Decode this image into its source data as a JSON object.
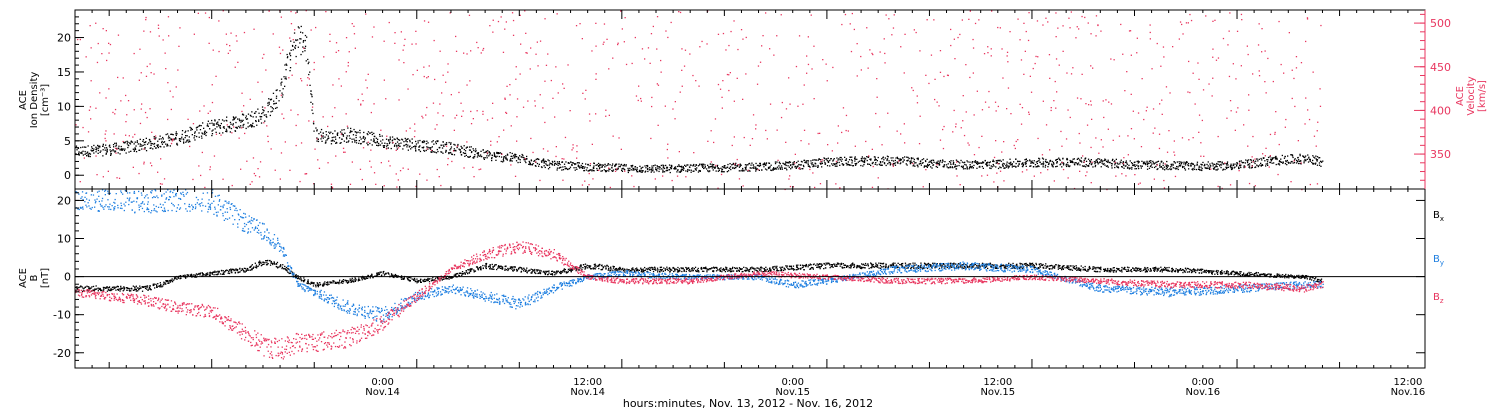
{
  "colors": {
    "black": "#000000",
    "pink": "#e8365f",
    "blue": "#1f7fe0"
  },
  "xaxis": {
    "title": "hours:minutes, Nov. 13, 2012 - Nov. 16, 2012",
    "ticks": [
      {
        "hour": 18,
        "time": "0:00",
        "date": "Nov.14"
      },
      {
        "hour": 30,
        "time": "12:00",
        "date": "Nov.14"
      },
      {
        "hour": 42,
        "time": "0:00",
        "date": "Nov.15"
      },
      {
        "hour": 54,
        "time": "12:00",
        "date": "Nov.15"
      },
      {
        "hour": 66,
        "time": "0:00",
        "date": "Nov.16"
      },
      {
        "hour": 78,
        "time": "12:00",
        "date": "Nov.16"
      }
    ]
  },
  "top_panel": {
    "left_label_lines": [
      "ACE",
      "Ion Density",
      "[cm⁻³]"
    ],
    "right_label_lines": [
      "ACE",
      "Velocity",
      "[km/s]"
    ],
    "left_ticks": [
      "0",
      "5",
      "10",
      "15",
      "20"
    ],
    "right_ticks": [
      "350",
      "400",
      "450",
      "500"
    ]
  },
  "bottom_panel": {
    "left_label_lines": [
      "ACE",
      "B",
      "[nT]"
    ],
    "left_ticks": [
      "-20",
      "-10",
      "0",
      "10",
      "20"
    ],
    "legend": [
      {
        "label": "B",
        "sub": "x",
        "color": "#000000"
      },
      {
        "label": "B",
        "sub": "y",
        "color": "#1f7fe0"
      },
      {
        "label": "B",
        "sub": "z",
        "color": "#e8365f"
      }
    ]
  },
  "chart_data": [
    {
      "type": "scatter",
      "title": "",
      "xlabel": "hours:minutes, Nov. 13, 2012 - Nov. 16, 2012",
      "ylabel": "ACE Ion Density [cm⁻³]",
      "ylabel_right": "ACE Velocity [km/s]",
      "xlim": [
        "2012-11-13T16:00",
        "2012-11-16T23:00"
      ],
      "ylim": [
        -2,
        24
      ],
      "ylim_right": [
        310,
        515
      ],
      "series": [
        {
          "name": "Ion Density",
          "axis": "left",
          "color": "#000000",
          "x": [
            "2012-11-13T16:00",
            "2012-11-13T18:00",
            "2012-11-13T20:00",
            "2012-11-13T22:00",
            "2012-11-14T00:00",
            "2012-11-14T02:00",
            "2012-11-14T03:00",
            "2012-11-14T04:00",
            "2012-11-14T04:30",
            "2012-11-14T05:00",
            "2012-11-14T05:30",
            "2012-11-14T06:00",
            "2012-11-14T07:00",
            "2012-11-14T08:00",
            "2012-11-14T10:00",
            "2012-11-14T12:00",
            "2012-11-14T14:00",
            "2012-11-14T16:00",
            "2012-11-14T18:00",
            "2012-11-14T20:00",
            "2012-11-14T22:00",
            "2012-11-15T00:00",
            "2012-11-15T02:00",
            "2012-11-15T04:00",
            "2012-11-15T06:00",
            "2012-11-15T08:00",
            "2012-11-15T10:00",
            "2012-11-15T12:00",
            "2012-11-15T14:00",
            "2012-11-15T16:00",
            "2012-11-15T18:00",
            "2012-11-15T20:00",
            "2012-11-15T22:00",
            "2012-11-16T00:00",
            "2012-11-16T02:00",
            "2012-11-16T04:00",
            "2012-11-16T06:00",
            "2012-11-16T08:00",
            "2012-11-16T10:00",
            "2012-11-16T12:00",
            "2012-11-16T14:00",
            "2012-11-16T16:00",
            "2012-11-16T17:00"
          ],
          "values": [
            3.5,
            3.8,
            4.5,
            5.5,
            7,
            8,
            9,
            12,
            17,
            20,
            19,
            6,
            5.5,
            6,
            5,
            4.5,
            4,
            3,
            2.5,
            1.5,
            1.3,
            1.1,
            1.0,
            1.1,
            1.2,
            1.3,
            1.5,
            2.0,
            2.1,
            2.2,
            1.8,
            1.6,
            1.7,
            1.9,
            2.0,
            1.9,
            1.6,
            1.5,
            1.4,
            1.5,
            2.2,
            2.5,
            2.0
          ]
        },
        {
          "name": "Velocity",
          "axis": "right",
          "color": "#e8365f",
          "x": [
            "2012-11-13T16:00",
            "2012-11-13T18:00",
            "2012-11-13T20:00",
            "2012-11-13T22:00",
            "2012-11-14T00:00",
            "2012-11-14T02:00",
            "2012-11-14T04:00",
            "2012-11-14T05:00",
            "2012-11-14T06:00",
            "2012-11-14T08:00",
            "2012-11-14T10:00",
            "2012-11-14T12:00",
            "2012-11-14T14:00",
            "2012-11-14T16:00",
            "2012-11-14T18:00",
            "2012-11-14T20:00",
            "2012-11-14T21:00",
            "2012-11-14T22:00",
            "2012-11-15T00:00",
            "2012-11-15T02:00",
            "2012-11-15T04:00",
            "2012-11-15T06:00",
            "2012-11-15T08:00",
            "2012-11-15T10:00",
            "2012-11-15T12:00",
            "2012-11-15T14:00",
            "2012-11-15T16:00",
            "2012-11-15T18:00",
            "2012-11-15T20:00",
            "2012-11-15T22:00",
            "2012-11-16T00:00",
            "2012-11-16T02:00",
            "2012-11-16T04:00",
            "2012-11-16T06:00",
            "2012-11-16T08:00",
            "2012-11-16T10:00",
            "2012-11-16T12:00",
            "2012-11-16T13:00",
            "2012-11-16T14:00",
            "2012-11-16T16:00",
            "2012-11-16T17:00"
          ],
          "values": [
            380,
            382,
            382,
            388,
            395,
            398,
            405,
            415,
            410,
            408,
            415,
            422,
            428,
            433,
            436,
            440,
            445,
            488,
            495,
            498,
            497,
            492,
            485,
            478,
            470,
            455,
            445,
            440,
            432,
            425,
            418,
            412,
            418,
            420,
            422,
            425,
            432,
            445,
            420,
            415,
            410
          ]
        }
      ]
    },
    {
      "type": "scatter",
      "title": "",
      "xlabel": "hours:minutes, Nov. 13, 2012 - Nov. 16, 2012",
      "ylabel": "ACE B [nT]",
      "xlim": [
        "2012-11-13T16:00",
        "2012-11-16T23:00"
      ],
      "ylim": [
        -24,
        23
      ],
      "series": [
        {
          "name": "Bx",
          "color": "#000000",
          "x": [
            "2012-11-13T16:00",
            "2012-11-13T18:00",
            "2012-11-13T20:00",
            "2012-11-13T21:00",
            "2012-11-13T22:00",
            "2012-11-14T00:00",
            "2012-11-14T02:00",
            "2012-11-14T03:00",
            "2012-11-14T04:00",
            "2012-11-14T05:00",
            "2012-11-14T06:00",
            "2012-11-14T08:00",
            "2012-11-14T10:00",
            "2012-11-14T12:00",
            "2012-11-14T14:00",
            "2012-11-14T16:00",
            "2012-11-14T18:00",
            "2012-11-14T20:00",
            "2012-11-14T22:00",
            "2012-11-15T00:00",
            "2012-11-15T04:00",
            "2012-11-15T08:00",
            "2012-11-15T12:00",
            "2012-11-15T16:00",
            "2012-11-15T20:00",
            "2012-11-16T00:00",
            "2012-11-16T04:00",
            "2012-11-16T08:00",
            "2012-11-16T12:00",
            "2012-11-16T16:00",
            "2012-11-16T17:00"
          ],
          "values": [
            -3,
            -3,
            -3,
            -2,
            0,
            1,
            2,
            4,
            3,
            0,
            -2,
            -1,
            1,
            -1,
            0,
            3,
            2,
            1,
            3,
            2,
            2,
            2,
            3,
            3,
            3,
            3,
            2,
            2,
            1,
            0,
            -1
          ]
        },
        {
          "name": "By",
          "color": "#1f7fe0",
          "x": [
            "2012-11-13T16:00",
            "2012-11-13T18:00",
            "2012-11-13T20:00",
            "2012-11-13T22:00",
            "2012-11-13T23:00",
            "2012-11-14T00:00",
            "2012-11-14T01:00",
            "2012-11-14T02:00",
            "2012-11-14T03:00",
            "2012-11-14T04:00",
            "2012-11-14T05:00",
            "2012-11-14T06:00",
            "2012-11-14T08:00",
            "2012-11-14T10:00",
            "2012-11-14T12:00",
            "2012-11-14T14:00",
            "2012-11-14T16:00",
            "2012-11-14T18:00",
            "2012-11-14T20:00",
            "2012-11-14T22:00",
            "2012-11-15T00:00",
            "2012-11-15T04:00",
            "2012-11-15T08:00",
            "2012-11-15T10:00",
            "2012-11-15T12:00",
            "2012-11-15T16:00",
            "2012-11-15T20:00",
            "2012-11-16T00:00",
            "2012-11-16T04:00",
            "2012-11-16T08:00",
            "2012-11-16T12:00",
            "2012-11-16T16:00",
            "2012-11-16T17:00"
          ],
          "values": [
            21,
            20.5,
            20,
            20,
            21,
            20,
            17,
            14,
            12,
            8,
            -2,
            -4,
            -8,
            -10,
            -5,
            -3,
            -5,
            -7,
            -3,
            0,
            1,
            0,
            0,
            -2,
            -1,
            2,
            3,
            2,
            -3,
            -4,
            -3,
            -2,
            -2
          ]
        },
        {
          "name": "Bz",
          "color": "#e8365f",
          "x": [
            "2012-11-13T16:00",
            "2012-11-13T18:00",
            "2012-11-13T20:00",
            "2012-11-13T21:00",
            "2012-11-13T22:00",
            "2012-11-14T00:00",
            "2012-11-14T02:00",
            "2012-11-14T03:00",
            "2012-11-14T04:00",
            "2012-11-14T05:00",
            "2012-11-14T06:00",
            "2012-11-14T08:00",
            "2012-11-14T10:00",
            "2012-11-14T12:00",
            "2012-11-14T14:00",
            "2012-11-14T16:00",
            "2012-11-14T18:00",
            "2012-11-14T20:00",
            "2012-11-14T22:00",
            "2012-11-15T00:00",
            "2012-11-15T04:00",
            "2012-11-15T08:00",
            "2012-11-15T12:00",
            "2012-11-15T16:00",
            "2012-11-15T20:00",
            "2012-11-16T00:00",
            "2012-11-16T04:00",
            "2012-11-16T08:00",
            "2012-11-16T12:00",
            "2012-11-16T16:00",
            "2012-11-16T17:00"
          ],
          "values": [
            -4,
            -5,
            -6,
            -7,
            -8,
            -9,
            -15,
            -18,
            -19,
            -17,
            -17,
            -16,
            -12,
            -5,
            2,
            6,
            8,
            6,
            0,
            -1,
            -1,
            1,
            0,
            -1,
            -1,
            0,
            -1,
            -2,
            -2,
            -3,
            -2
          ]
        }
      ]
    }
  ]
}
